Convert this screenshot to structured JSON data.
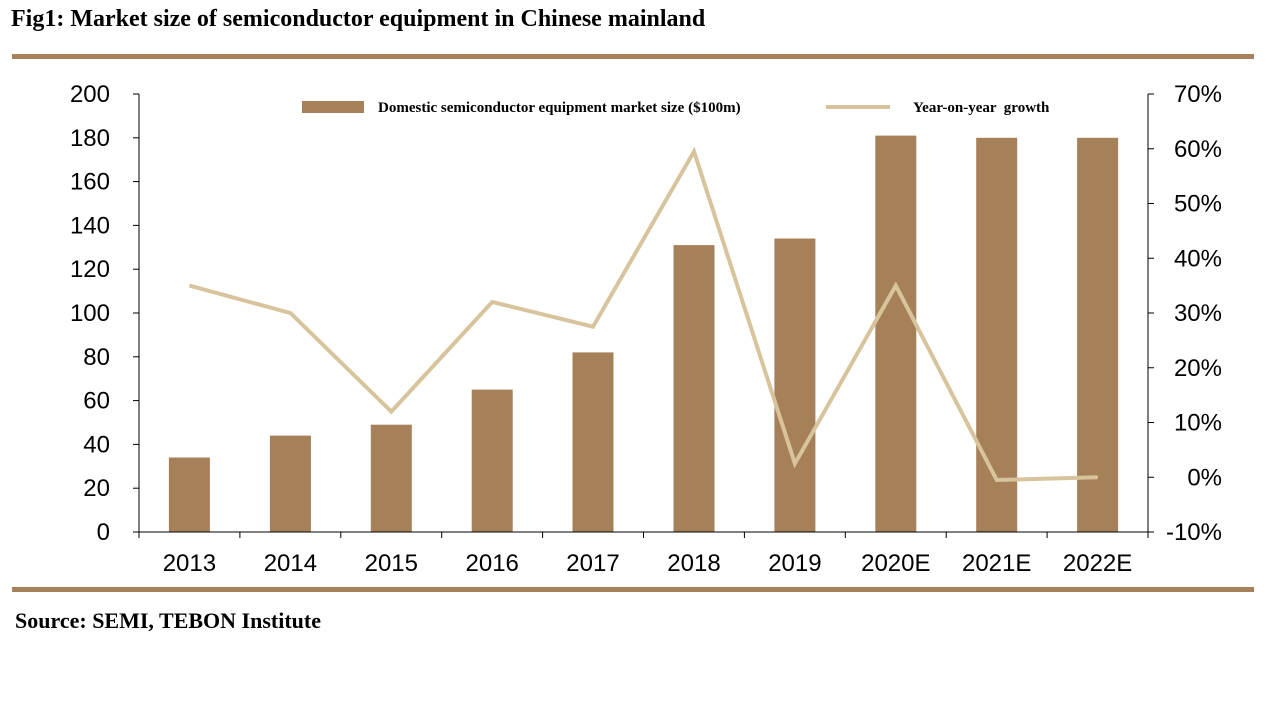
{
  "figure": {
    "title": "Fig1: Market size of semiconductor equipment in Chinese mainland",
    "source": "Source: SEMI, TEBON Institute"
  },
  "colors": {
    "bar": "#a68059",
    "line": "#d8c49c",
    "rule": "#a8815a",
    "axis": "#000000"
  },
  "chart_data": {
    "type": "bar",
    "title": "",
    "xlabel": "",
    "ylabel": "",
    "categories": [
      "2013",
      "2014",
      "2015",
      "2016",
      "2017",
      "2018",
      "2019",
      "2020E",
      "2021E",
      "2022E"
    ],
    "ylim": [
      0,
      200
    ],
    "yticks": [
      0,
      20,
      40,
      60,
      80,
      100,
      120,
      140,
      160,
      180,
      200
    ],
    "y2lim": [
      -10,
      70
    ],
    "y2ticks": [
      "-10%",
      "0%",
      "10%",
      "20%",
      "30%",
      "40%",
      "50%",
      "60%",
      "70%"
    ],
    "y2tick_values": [
      -10,
      0,
      10,
      20,
      30,
      40,
      50,
      60,
      70
    ],
    "grid": false,
    "legend_position": "top",
    "series": [
      {
        "name": "Domestic semiconductor equipment market size ($100m)",
        "type": "bar",
        "axis": "left",
        "values": [
          34,
          44,
          49,
          65,
          82,
          131,
          134,
          181,
          180,
          180
        ]
      },
      {
        "name": "Year-on-year  growth",
        "type": "line",
        "axis": "right",
        "unit": "%",
        "values": [
          35,
          30,
          12,
          32,
          27.5,
          59.5,
          2.5,
          35,
          -0.5,
          0
        ]
      }
    ]
  }
}
